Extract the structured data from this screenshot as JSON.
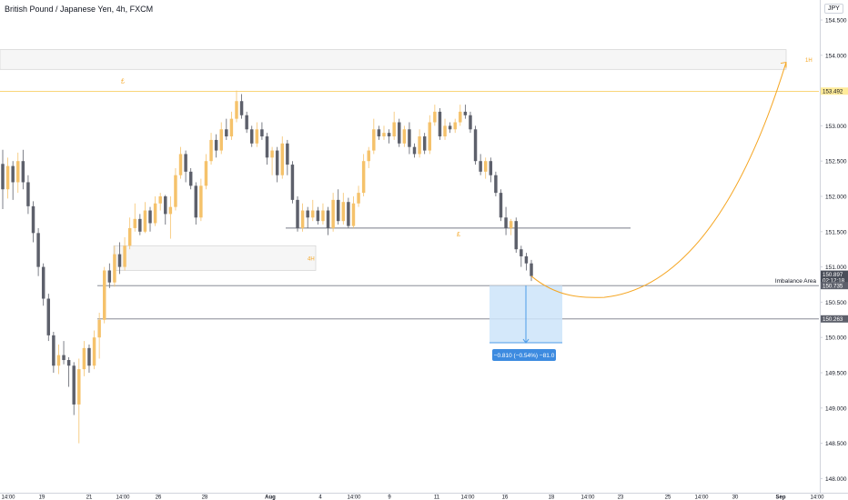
{
  "header": {
    "title": "British Pound / Japanese Yen, 4h, FXCM",
    "currency": "JPY"
  },
  "chart_data": {
    "type": "candlestick",
    "title": "British Pound / Japanese Yen, 4h, FXCM",
    "ylim": [
      147.9,
      154.8
    ],
    "y_ticks": [
      "154.500",
      "154.000",
      "153.500",
      "153.000",
      "152.500",
      "152.000",
      "151.500",
      "151.000",
      "150.500",
      "150.000",
      "149.500",
      "149.000",
      "148.500",
      "148.000"
    ],
    "x_ticks": [
      "14:00",
      "19",
      "21",
      "14:00",
      "26",
      "28",
      "Aug",
      "4",
      "14:00",
      "9",
      "11",
      "14:00",
      "16",
      "18",
      "14:00",
      "23",
      "25",
      "14:00",
      "30",
      "Sep",
      "14:00"
    ],
    "candles": [
      [
        152.46,
        152.1,
        152.66,
        151.82
      ],
      [
        152.1,
        152.43,
        152.55,
        151.97
      ],
      [
        152.43,
        152.2,
        152.5,
        151.95
      ],
      [
        152.2,
        152.5,
        152.62,
        152.05
      ],
      [
        152.5,
        152.2,
        152.66,
        152.1
      ],
      [
        152.2,
        151.86,
        152.3,
        151.75
      ],
      [
        151.86,
        151.48,
        151.93,
        151.35
      ],
      [
        151.48,
        151.0,
        151.55,
        150.87
      ],
      [
        151.0,
        150.55,
        151.05,
        150.45
      ],
      [
        150.55,
        150.03,
        150.62,
        149.95
      ],
      [
        150.03,
        149.6,
        150.08,
        149.5
      ],
      [
        149.6,
        149.75,
        149.9,
        149.48
      ],
      [
        149.75,
        149.68,
        149.95,
        149.62
      ],
      [
        149.68,
        149.6,
        149.72,
        149.3
      ],
      [
        149.6,
        149.05,
        149.65,
        148.9
      ],
      [
        149.05,
        149.55,
        149.7,
        148.5
      ],
      [
        149.55,
        149.85,
        149.95,
        149.45
      ],
      [
        149.85,
        149.6,
        149.9,
        149.5
      ],
      [
        149.6,
        150.0,
        150.1,
        149.55
      ],
      [
        150.0,
        150.25,
        150.35,
        149.7
      ],
      [
        150.25,
        150.95,
        151.0,
        150.2
      ],
      [
        150.95,
        150.78,
        151.05,
        150.7
      ],
      [
        150.78,
        151.18,
        151.3,
        150.72
      ],
      [
        151.18,
        151.0,
        151.35,
        150.9
      ],
      [
        151.0,
        151.3,
        151.42,
        150.95
      ],
      [
        151.3,
        151.55,
        151.7,
        151.25
      ],
      [
        151.55,
        151.68,
        151.9,
        151.5
      ],
      [
        151.68,
        151.5,
        151.75,
        151.45
      ],
      [
        151.5,
        151.8,
        151.92,
        151.48
      ],
      [
        151.8,
        151.62,
        151.85,
        151.5
      ],
      [
        151.62,
        151.9,
        152.0,
        151.58
      ],
      [
        151.9,
        152.0,
        152.05,
        151.8
      ],
      [
        152.0,
        151.75,
        152.02,
        151.6
      ],
      [
        151.75,
        151.85,
        152.0,
        151.4
      ],
      [
        151.85,
        152.3,
        152.4,
        151.8
      ],
      [
        152.3,
        152.6,
        152.7,
        152.25
      ],
      [
        152.6,
        152.35,
        152.65,
        152.2
      ],
      [
        152.35,
        152.15,
        152.4,
        152.1
      ],
      [
        152.15,
        151.7,
        152.2,
        151.6
      ],
      [
        151.7,
        152.15,
        152.25,
        151.65
      ],
      [
        152.15,
        152.5,
        152.6,
        152.1
      ],
      [
        152.5,
        152.8,
        152.9,
        152.45
      ],
      [
        152.8,
        152.65,
        152.88,
        152.55
      ],
      [
        152.65,
        152.95,
        153.05,
        152.6
      ],
      [
        152.95,
        152.85,
        153.1,
        152.8
      ],
      [
        152.85,
        153.1,
        153.2,
        152.8
      ],
      [
        153.1,
        153.35,
        153.5,
        153.05
      ],
      [
        153.35,
        153.15,
        153.45,
        153.1
      ],
      [
        153.15,
        152.95,
        153.2,
        152.9
      ],
      [
        152.95,
        152.75,
        153.0,
        152.7
      ],
      [
        152.75,
        152.95,
        153.05,
        152.7
      ],
      [
        152.95,
        152.85,
        153.05,
        152.8
      ],
      [
        152.85,
        152.55,
        152.9,
        152.45
      ],
      [
        152.55,
        152.65,
        152.7,
        152.3
      ],
      [
        152.65,
        152.3,
        152.7,
        152.2
      ],
      [
        152.3,
        152.75,
        152.85,
        152.25
      ],
      [
        152.75,
        152.45,
        152.8,
        152.3
      ],
      [
        152.45,
        151.95,
        152.5,
        151.9
      ],
      [
        151.95,
        151.55,
        152.0,
        151.5
      ],
      [
        151.55,
        151.8,
        151.9,
        151.5
      ],
      [
        151.8,
        151.7,
        151.85,
        151.55
      ],
      [
        151.7,
        151.8,
        151.95,
        151.65
      ],
      [
        151.8,
        151.65,
        151.85,
        151.6
      ],
      [
        151.65,
        151.8,
        151.9,
        151.6
      ],
      [
        151.8,
        151.55,
        151.85,
        151.45
      ],
      [
        151.55,
        151.95,
        152.05,
        151.5
      ],
      [
        151.95,
        151.65,
        152.1,
        151.6
      ],
      [
        151.65,
        151.92,
        152.05,
        151.6
      ],
      [
        151.92,
        151.58,
        151.98,
        151.55
      ],
      [
        151.58,
        151.9,
        152.0,
        151.55
      ],
      [
        151.9,
        152.05,
        152.15,
        151.85
      ],
      [
        152.05,
        152.5,
        152.6,
        152.0
      ],
      [
        152.5,
        152.65,
        152.7,
        152.4
      ],
      [
        152.65,
        152.95,
        153.1,
        152.6
      ],
      [
        152.95,
        152.85,
        153.0,
        152.8
      ],
      [
        152.85,
        152.9,
        153.0,
        152.8
      ],
      [
        152.9,
        152.85,
        152.95,
        152.75
      ],
      [
        152.85,
        153.05,
        153.2,
        152.8
      ],
      [
        153.05,
        152.75,
        153.1,
        152.7
      ],
      [
        152.75,
        152.95,
        153.0,
        152.7
      ],
      [
        152.95,
        152.7,
        153.05,
        152.6
      ],
      [
        152.7,
        152.6,
        152.75,
        152.55
      ],
      [
        152.6,
        152.85,
        152.95,
        152.55
      ],
      [
        152.85,
        152.65,
        152.9,
        152.6
      ],
      [
        152.65,
        153.05,
        153.15,
        152.6
      ],
      [
        153.05,
        153.2,
        153.3,
        153.0
      ],
      [
        153.2,
        152.85,
        153.25,
        152.8
      ],
      [
        152.85,
        153.0,
        153.1,
        152.8
      ],
      [
        153.0,
        152.95,
        153.05,
        152.9
      ],
      [
        152.95,
        153.05,
        153.1,
        152.9
      ],
      [
        153.05,
        153.2,
        153.3,
        153.0
      ],
      [
        153.2,
        153.15,
        153.3,
        153.1
      ],
      [
        153.15,
        152.95,
        153.2,
        152.9
      ],
      [
        152.95,
        152.5,
        153.0,
        152.45
      ],
      [
        152.5,
        152.35,
        152.6,
        152.3
      ],
      [
        152.35,
        152.5,
        152.55,
        152.25
      ],
      [
        152.5,
        152.3,
        152.55,
        152.2
      ],
      [
        152.3,
        152.05,
        152.35,
        152.0
      ],
      [
        152.05,
        151.7,
        152.1,
        151.65
      ],
      [
        151.7,
        151.55,
        151.85,
        151.45
      ],
      [
        151.55,
        151.65,
        151.68,
        151.45
      ],
      [
        151.65,
        151.25,
        151.7,
        151.2
      ],
      [
        151.25,
        151.15,
        151.3,
        151.0
      ],
      [
        151.15,
        151.05,
        151.2,
        150.95
      ],
      [
        151.05,
        150.87,
        151.1,
        150.8
      ]
    ],
    "annotations": {
      "resistance_line": 153.49,
      "zone_1h": [
        153.8,
        154.08
      ],
      "label_1h": "1H",
      "zone_4h": [
        150.95,
        151.3
      ],
      "label_4h": "4H",
      "support_line": 151.55,
      "label_left": "£",
      "label_mid": "£",
      "imbalance_label": "Imbalance Area",
      "imbalance_top": 150.735,
      "imbalance_bottom": 150.263,
      "measure_top": 150.735,
      "measure_bottom": 149.925,
      "measure_label": "−0.810 (−0.54%) −81.0",
      "target_price": 153.9
    },
    "price_labels": {
      "level_1": {
        "value": "153.492",
        "color": "#ffeb99",
        "price": 153.492
      },
      "current": {
        "value": "150.897",
        "color": "#4a4e59",
        "price": 150.897
      },
      "countdown": {
        "value": "02:12:18",
        "color": "#4a4e59",
        "price": 150.81
      },
      "level_2": {
        "value": "150.735",
        "color": "#5d606b",
        "price": 150.735
      },
      "level_3": {
        "value": "150.263",
        "color": "#5d606b",
        "price": 150.263
      }
    }
  },
  "colors": {
    "up": "#f5c26b",
    "down": "#5d606b",
    "grid": "#f0f3fa",
    "orange": "#f5a623",
    "measure_fill": "#cde4f9",
    "measure_stroke": "#4c9be8",
    "measure_label_bg": "#3d8be0"
  }
}
